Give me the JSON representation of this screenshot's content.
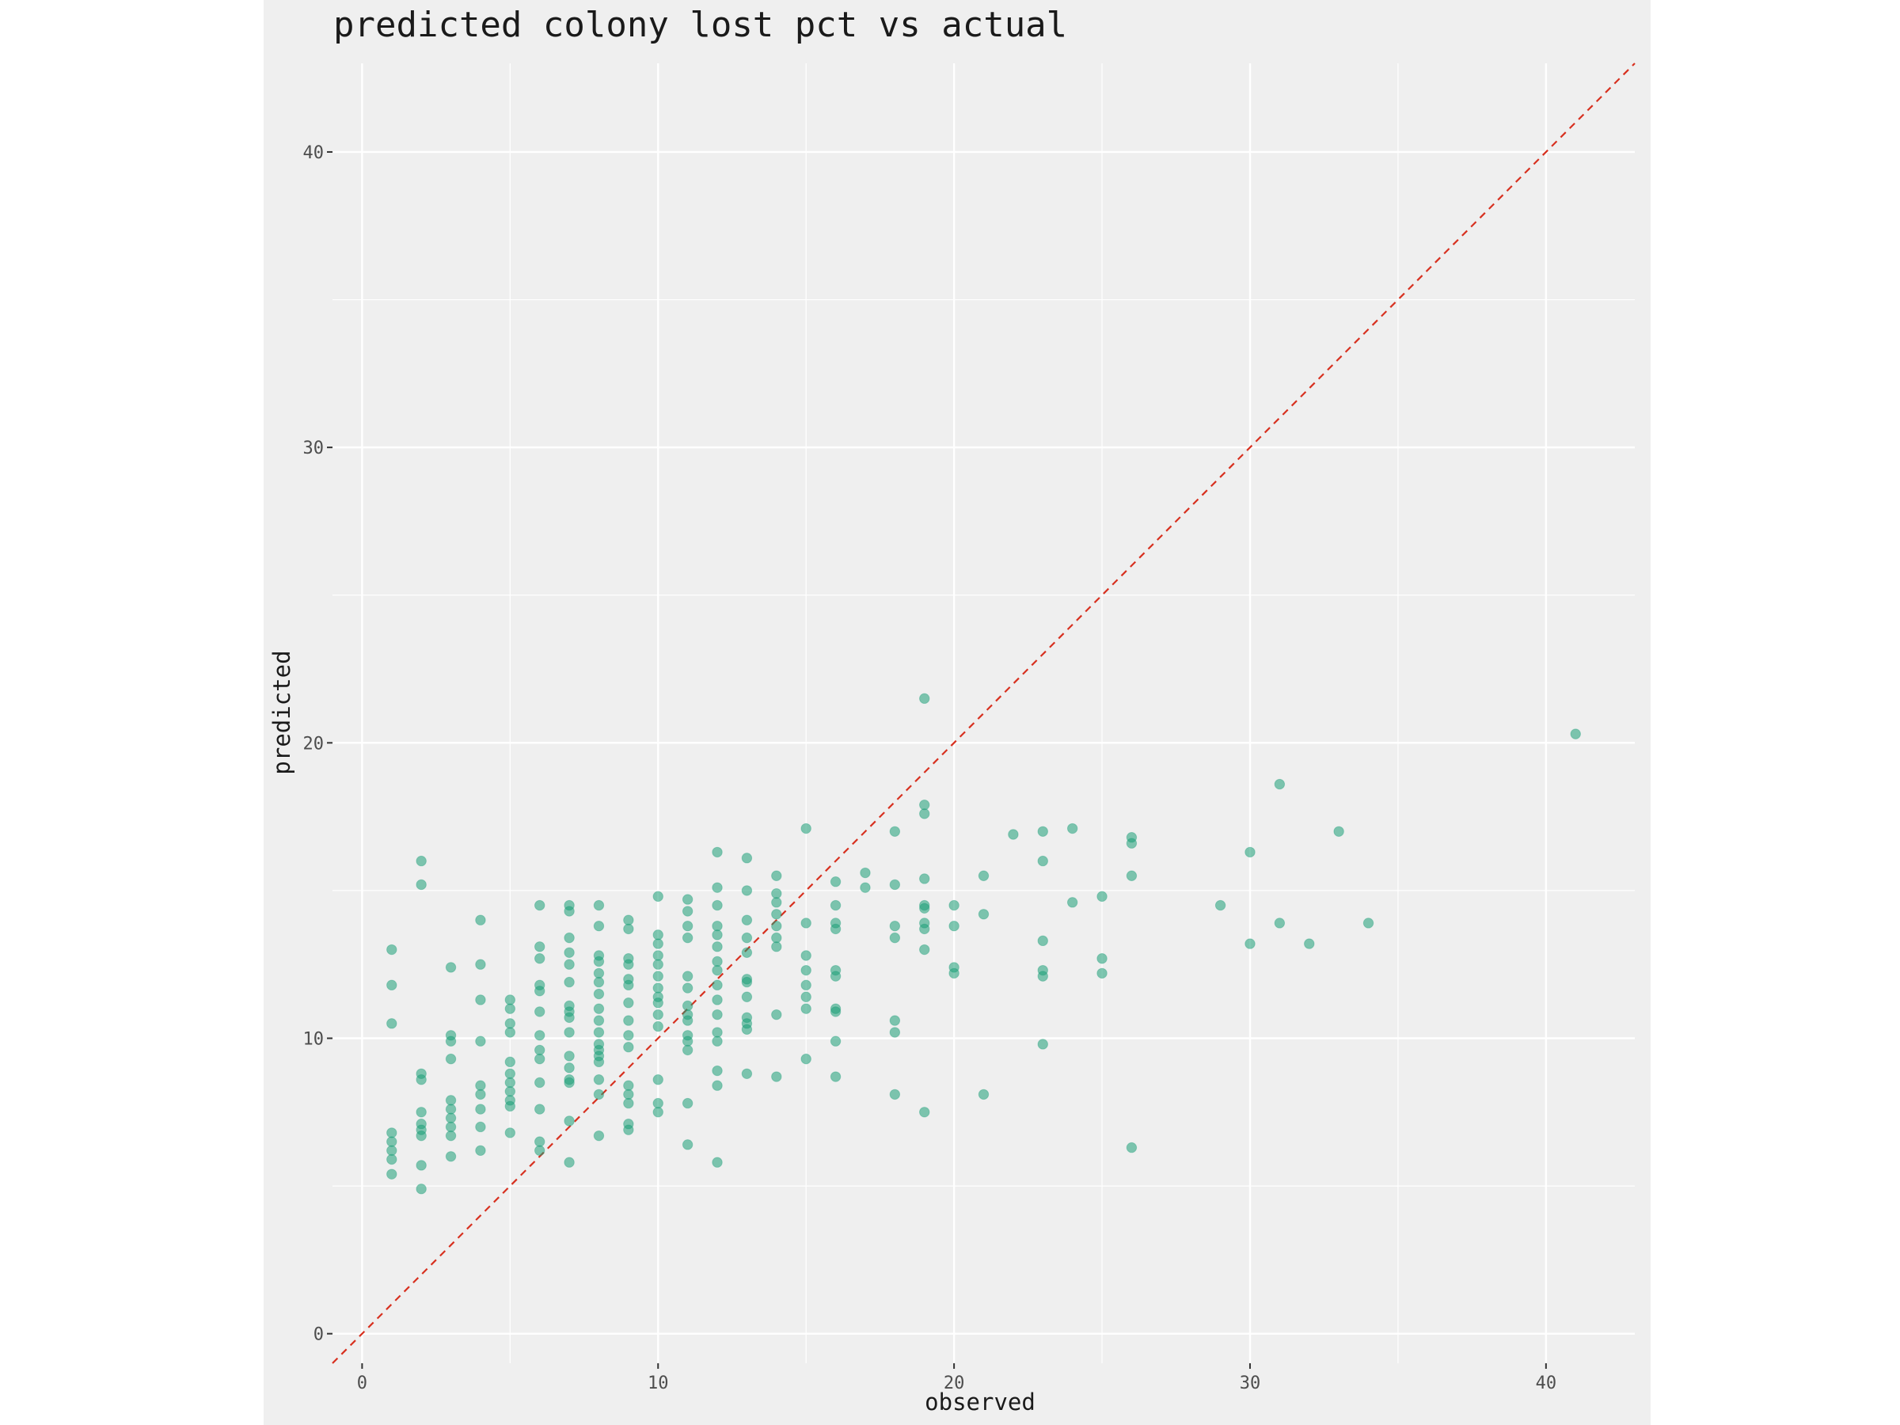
{
  "chart_data": {
    "type": "scatter",
    "title": "predicted colony lost pct vs actual",
    "xlabel": "observed",
    "ylabel": "predicted",
    "xlim": [
      -1,
      43
    ],
    "ylim": [
      -1,
      43
    ],
    "x_ticks": [
      0,
      10,
      20,
      30,
      40
    ],
    "y_ticks": [
      0,
      10,
      20,
      30,
      40
    ],
    "grid": true,
    "point_color": "#1b9e77",
    "reference_line": {
      "type": "identity",
      "slope": 1,
      "intercept": 0,
      "color": "#d7301f",
      "style": "dashed"
    },
    "points": [
      [
        1,
        13.0
      ],
      [
        1,
        11.8
      ],
      [
        1,
        10.5
      ],
      [
        1,
        6.8
      ],
      [
        1,
        6.5
      ],
      [
        1,
        6.2
      ],
      [
        1,
        5.9
      ],
      [
        1,
        5.4
      ],
      [
        2,
        16.0
      ],
      [
        2,
        15.2
      ],
      [
        2,
        8.8
      ],
      [
        2,
        8.6
      ],
      [
        2,
        7.5
      ],
      [
        2,
        7.1
      ],
      [
        2,
        6.9
      ],
      [
        2,
        6.7
      ],
      [
        2,
        5.7
      ],
      [
        2,
        4.9
      ],
      [
        3,
        12.4
      ],
      [
        3,
        10.1
      ],
      [
        3,
        9.9
      ],
      [
        3,
        9.3
      ],
      [
        3,
        7.9
      ],
      [
        3,
        7.6
      ],
      [
        3,
        7.3
      ],
      [
        3,
        7.0
      ],
      [
        3,
        6.7
      ],
      [
        3,
        6.0
      ],
      [
        4,
        14.0
      ],
      [
        4,
        12.5
      ],
      [
        4,
        11.3
      ],
      [
        4,
        9.9
      ],
      [
        4,
        8.4
      ],
      [
        4,
        8.1
      ],
      [
        4,
        7.6
      ],
      [
        4,
        7.0
      ],
      [
        4,
        6.2
      ],
      [
        5,
        11.3
      ],
      [
        5,
        11.0
      ],
      [
        5,
        10.5
      ],
      [
        5,
        10.2
      ],
      [
        5,
        9.2
      ],
      [
        5,
        8.8
      ],
      [
        5,
        8.5
      ],
      [
        5,
        8.2
      ],
      [
        5,
        7.9
      ],
      [
        5,
        7.7
      ],
      [
        5,
        6.8
      ],
      [
        6,
        14.5
      ],
      [
        6,
        13.1
      ],
      [
        6,
        12.7
      ],
      [
        6,
        11.8
      ],
      [
        6,
        11.6
      ],
      [
        6,
        10.9
      ],
      [
        6,
        10.1
      ],
      [
        6,
        9.6
      ],
      [
        6,
        9.3
      ],
      [
        6,
        8.5
      ],
      [
        6,
        7.6
      ],
      [
        6,
        6.5
      ],
      [
        6,
        6.2
      ],
      [
        7,
        14.5
      ],
      [
        7,
        14.3
      ],
      [
        7,
        13.4
      ],
      [
        7,
        12.9
      ],
      [
        7,
        12.5
      ],
      [
        7,
        11.9
      ],
      [
        7,
        11.1
      ],
      [
        7,
        10.9
      ],
      [
        7,
        10.7
      ],
      [
        7,
        10.2
      ],
      [
        7,
        9.4
      ],
      [
        7,
        9.0
      ],
      [
        7,
        8.6
      ],
      [
        7,
        8.5
      ],
      [
        7,
        7.2
      ],
      [
        7,
        5.8
      ],
      [
        8,
        14.5
      ],
      [
        8,
        13.8
      ],
      [
        8,
        12.8
      ],
      [
        8,
        12.6
      ],
      [
        8,
        12.2
      ],
      [
        8,
        11.9
      ],
      [
        8,
        11.5
      ],
      [
        8,
        11.0
      ],
      [
        8,
        10.6
      ],
      [
        8,
        10.2
      ],
      [
        8,
        9.8
      ],
      [
        8,
        9.6
      ],
      [
        8,
        9.4
      ],
      [
        8,
        9.2
      ],
      [
        8,
        8.6
      ],
      [
        8,
        8.1
      ],
      [
        8,
        6.7
      ],
      [
        9,
        14.0
      ],
      [
        9,
        13.7
      ],
      [
        9,
        12.7
      ],
      [
        9,
        12.5
      ],
      [
        9,
        12.0
      ],
      [
        9,
        11.8
      ],
      [
        9,
        11.2
      ],
      [
        9,
        10.6
      ],
      [
        9,
        10.1
      ],
      [
        9,
        9.7
      ],
      [
        9,
        8.4
      ],
      [
        9,
        8.1
      ],
      [
        9,
        7.8
      ],
      [
        9,
        7.1
      ],
      [
        9,
        6.9
      ],
      [
        10,
        14.8
      ],
      [
        10,
        13.5
      ],
      [
        10,
        13.2
      ],
      [
        10,
        12.8
      ],
      [
        10,
        12.5
      ],
      [
        10,
        12.1
      ],
      [
        10,
        11.7
      ],
      [
        10,
        11.4
      ],
      [
        10,
        11.2
      ],
      [
        10,
        10.8
      ],
      [
        10,
        10.4
      ],
      [
        10,
        8.6
      ],
      [
        10,
        7.8
      ],
      [
        10,
        7.5
      ],
      [
        11,
        14.7
      ],
      [
        11,
        14.3
      ],
      [
        11,
        13.8
      ],
      [
        11,
        13.4
      ],
      [
        11,
        12.1
      ],
      [
        11,
        11.7
      ],
      [
        11,
        11.1
      ],
      [
        11,
        10.8
      ],
      [
        11,
        10.6
      ],
      [
        11,
        10.1
      ],
      [
        11,
        9.9
      ],
      [
        11,
        9.6
      ],
      [
        11,
        7.8
      ],
      [
        11,
        6.4
      ],
      [
        12,
        16.3
      ],
      [
        12,
        15.1
      ],
      [
        12,
        14.5
      ],
      [
        12,
        13.8
      ],
      [
        12,
        13.5
      ],
      [
        12,
        13.1
      ],
      [
        12,
        12.6
      ],
      [
        12,
        12.3
      ],
      [
        12,
        11.8
      ],
      [
        12,
        11.3
      ],
      [
        12,
        10.8
      ],
      [
        12,
        10.2
      ],
      [
        12,
        9.9
      ],
      [
        12,
        8.9
      ],
      [
        12,
        8.4
      ],
      [
        12,
        5.8
      ],
      [
        13,
        16.1
      ],
      [
        13,
        15.0
      ],
      [
        13,
        14.0
      ],
      [
        13,
        13.4
      ],
      [
        13,
        12.9
      ],
      [
        13,
        12.0
      ],
      [
        13,
        11.9
      ],
      [
        13,
        11.4
      ],
      [
        13,
        10.7
      ],
      [
        13,
        10.5
      ],
      [
        13,
        10.3
      ],
      [
        13,
        8.8
      ],
      [
        14,
        15.5
      ],
      [
        14,
        14.9
      ],
      [
        14,
        14.6
      ],
      [
        14,
        14.2
      ],
      [
        14,
        13.8
      ],
      [
        14,
        13.4
      ],
      [
        14,
        13.1
      ],
      [
        14,
        10.8
      ],
      [
        14,
        8.7
      ],
      [
        15,
        17.1
      ],
      [
        15,
        13.9
      ],
      [
        15,
        12.8
      ],
      [
        15,
        12.3
      ],
      [
        15,
        11.8
      ],
      [
        15,
        11.4
      ],
      [
        15,
        11.0
      ],
      [
        15,
        9.3
      ],
      [
        16,
        15.3
      ],
      [
        16,
        14.5
      ],
      [
        16,
        13.9
      ],
      [
        16,
        13.7
      ],
      [
        16,
        12.3
      ],
      [
        16,
        12.1
      ],
      [
        16,
        11.0
      ],
      [
        16,
        10.9
      ],
      [
        16,
        9.9
      ],
      [
        16,
        8.7
      ],
      [
        17,
        15.6
      ],
      [
        17,
        15.1
      ],
      [
        18,
        17.0
      ],
      [
        18,
        15.2
      ],
      [
        18,
        13.8
      ],
      [
        18,
        13.4
      ],
      [
        18,
        10.6
      ],
      [
        18,
        10.2
      ],
      [
        18,
        8.1
      ],
      [
        19,
        21.5
      ],
      [
        19,
        17.9
      ],
      [
        19,
        17.6
      ],
      [
        19,
        15.4
      ],
      [
        19,
        14.5
      ],
      [
        19,
        14.4
      ],
      [
        19,
        13.9
      ],
      [
        19,
        13.7
      ],
      [
        19,
        13.0
      ],
      [
        19,
        7.5
      ],
      [
        20,
        14.5
      ],
      [
        20,
        13.8
      ],
      [
        20,
        12.4
      ],
      [
        20,
        12.2
      ],
      [
        21,
        15.5
      ],
      [
        21,
        14.2
      ],
      [
        21,
        8.1
      ],
      [
        22,
        16.9
      ],
      [
        23,
        17.0
      ],
      [
        23,
        16.0
      ],
      [
        23,
        13.3
      ],
      [
        23,
        12.3
      ],
      [
        23,
        12.1
      ],
      [
        23,
        9.8
      ],
      [
        24,
        17.1
      ],
      [
        24,
        14.6
      ],
      [
        25,
        14.8
      ],
      [
        25,
        12.7
      ],
      [
        25,
        12.2
      ],
      [
        26,
        16.8
      ],
      [
        26,
        16.6
      ],
      [
        26,
        15.5
      ],
      [
        26,
        6.3
      ],
      [
        29,
        14.5
      ],
      [
        30,
        16.3
      ],
      [
        30,
        13.2
      ],
      [
        31,
        18.6
      ],
      [
        31,
        13.9
      ],
      [
        32,
        13.2
      ],
      [
        33,
        17.0
      ],
      [
        34,
        13.9
      ],
      [
        41,
        20.3
      ]
    ]
  }
}
